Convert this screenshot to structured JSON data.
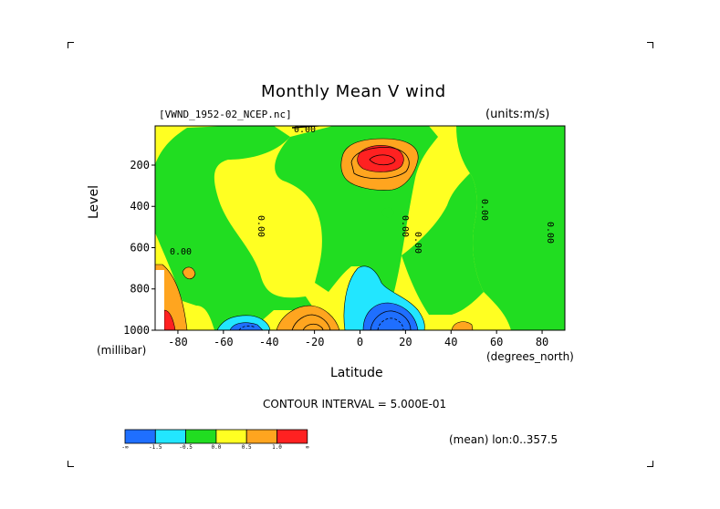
{
  "chart_data": {
    "type": "heatmap",
    "title": "Monthly Mean V wind",
    "dataset": "[VWND_1952-02_NCEP.nc]",
    "units": "(units:m/s)",
    "xlabel": "Latitude",
    "xunit": "(degrees_north)",
    "ylabel": "Level",
    "yunit": "(millibar)",
    "xlim": [
      -90,
      90
    ],
    "ylim": [
      1000,
      10
    ],
    "x_ticks": [
      "-80",
      "-60",
      "-40",
      "-20",
      "0",
      "20",
      "40",
      "60",
      "80"
    ],
    "x_tick_values": [
      -80,
      -60,
      -40,
      -20,
      0,
      20,
      40,
      60,
      80
    ],
    "y_ticks": [
      "200",
      "400",
      "600",
      "800",
      "1000"
    ],
    "y_tick_values": [
      200,
      400,
      600,
      800,
      1000
    ],
    "contour_interval_text": "CONTOUR INTERVAL = 5.000E-01",
    "contour_labels": [
      "0.00",
      "0.00",
      "0.00",
      "0.00",
      "0.00",
      "0.00",
      "0.00"
    ],
    "footer": "(mean) lon:0..357.5",
    "colorbar": {
      "colors": [
        "#1f6fff",
        "#22e6ff",
        "#21dd21",
        "#ffff22",
        "#ffa51f",
        "#ff2121"
      ],
      "labels": [
        "-∞",
        "-1.5",
        "-0.5",
        "0.0",
        "0.5",
        "1.0",
        "∞"
      ]
    },
    "regions": [
      {
        "name": "positive-tropical-upper",
        "level": "≥1.0",
        "lat": 15,
        "pressure": 150
      },
      {
        "name": "negative-tropical-lower",
        "level": "≤-1.5",
        "lat": 10,
        "pressure": 975
      },
      {
        "name": "negative-southern-midlat-lower",
        "level": "≤-1.5",
        "lat": -58,
        "pressure": 990
      },
      {
        "name": "positive-southern-subtrop-lower",
        "level": "≥1.0",
        "lat": -25,
        "pressure": 990
      },
      {
        "name": "positive-antarctic-edge",
        "level": "≥1.0",
        "lat": -87,
        "pressure": 950
      }
    ]
  }
}
